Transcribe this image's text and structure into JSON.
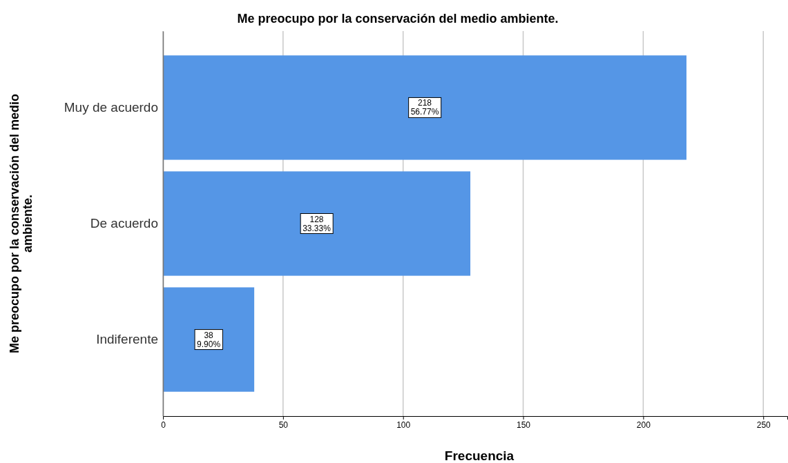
{
  "chart_data": {
    "type": "bar",
    "orientation": "horizontal",
    "title": "Me preocupo por la conservación del medio ambiente.",
    "xlabel": "Frecuencia",
    "ylabel": "Me preocupo por la conservación del medio ambiente.",
    "categories": [
      "Muy de acuerdo",
      "De acuerdo",
      "Indiferente"
    ],
    "values": [
      218,
      128,
      38
    ],
    "value_labels": [
      "218\n56.77%",
      "128\n33.33%",
      "38\n9.90%"
    ],
    "color": "#5596e6",
    "xlim": [
      0,
      260
    ],
    "xticks": [
      0,
      50,
      100,
      150,
      200,
      250
    ],
    "grid": "x"
  }
}
